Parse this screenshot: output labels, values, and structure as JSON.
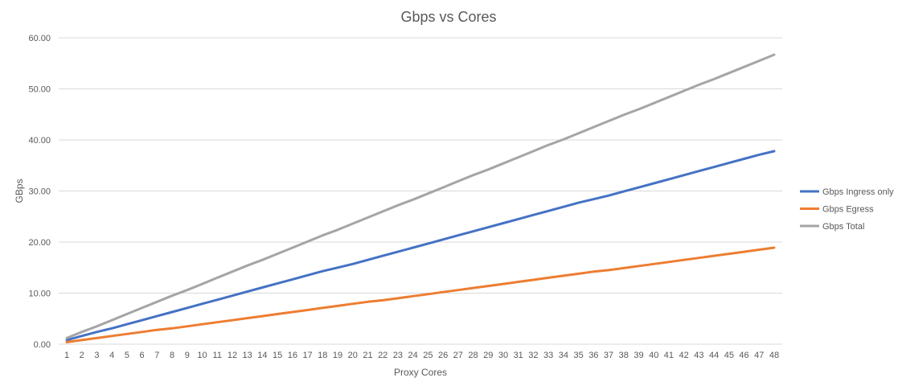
{
  "chart_data": {
    "type": "line",
    "title": "Gbps vs Cores",
    "xlabel": "Proxy Cores",
    "ylabel": "GBps",
    "ylim": [
      0,
      60
    ],
    "yticks": [
      "0.00",
      "10.00",
      "20.00",
      "30.00",
      "40.00",
      "50.00",
      "60.00"
    ],
    "grid": true,
    "legend_position": "right",
    "categories": [
      "1",
      "2",
      "3",
      "4",
      "5",
      "6",
      "7",
      "8",
      "9",
      "10",
      "11",
      "12",
      "13",
      "14",
      "15",
      "16",
      "17",
      "18",
      "19",
      "20",
      "21",
      "22",
      "23",
      "24",
      "25",
      "26",
      "27",
      "28",
      "29",
      "30",
      "31",
      "32",
      "33",
      "34",
      "35",
      "36",
      "37",
      "38",
      "39",
      "40",
      "41",
      "42",
      "43",
      "44",
      "45",
      "46",
      "47",
      "48"
    ],
    "series": [
      {
        "name": "Gbps Ingress only",
        "color": "#4472C4",
        "values": [
          0.8,
          1.6,
          2.4,
          3.1,
          3.9,
          4.7,
          5.5,
          6.3,
          7.1,
          7.9,
          8.7,
          9.5,
          10.3,
          11.1,
          11.9,
          12.7,
          13.5,
          14.3,
          15.0,
          15.7,
          16.5,
          17.3,
          18.1,
          18.9,
          19.7,
          20.5,
          21.3,
          22.1,
          22.9,
          23.7,
          24.5,
          25.3,
          26.1,
          26.9,
          27.7,
          28.4,
          29.1,
          29.9,
          30.7,
          31.5,
          32.3,
          33.1,
          33.9,
          34.7,
          35.5,
          36.3,
          37.1,
          37.8
        ]
      },
      {
        "name": "Gbps Egress",
        "color": "#ED7D31",
        "values": [
          0.4,
          0.8,
          1.2,
          1.6,
          2.0,
          2.4,
          2.8,
          3.1,
          3.5,
          3.9,
          4.3,
          4.7,
          5.1,
          5.5,
          5.9,
          6.3,
          6.7,
          7.1,
          7.5,
          7.9,
          8.3,
          8.6,
          9.0,
          9.4,
          9.8,
          10.2,
          10.6,
          11.0,
          11.4,
          11.8,
          12.2,
          12.6,
          13.0,
          13.4,
          13.8,
          14.2,
          14.5,
          14.9,
          15.3,
          15.7,
          16.1,
          16.5,
          16.9,
          17.3,
          17.7,
          18.1,
          18.5,
          18.9
        ]
      },
      {
        "name": "Gbps Total",
        "color": "#A5A5A5",
        "values": [
          1.2,
          2.4,
          3.5,
          4.7,
          5.9,
          7.1,
          8.3,
          9.5,
          10.6,
          11.8,
          13.0,
          14.2,
          15.4,
          16.5,
          17.7,
          18.9,
          20.1,
          21.3,
          22.4,
          23.6,
          24.8,
          26.0,
          27.2,
          28.3,
          29.5,
          30.7,
          31.9,
          33.1,
          34.2,
          35.4,
          36.6,
          37.8,
          39.0,
          40.1,
          41.3,
          42.5,
          43.7,
          44.9,
          46.0,
          47.2,
          48.4,
          49.6,
          50.8,
          51.9,
          53.1,
          54.3,
          55.5,
          56.7
        ]
      }
    ]
  }
}
